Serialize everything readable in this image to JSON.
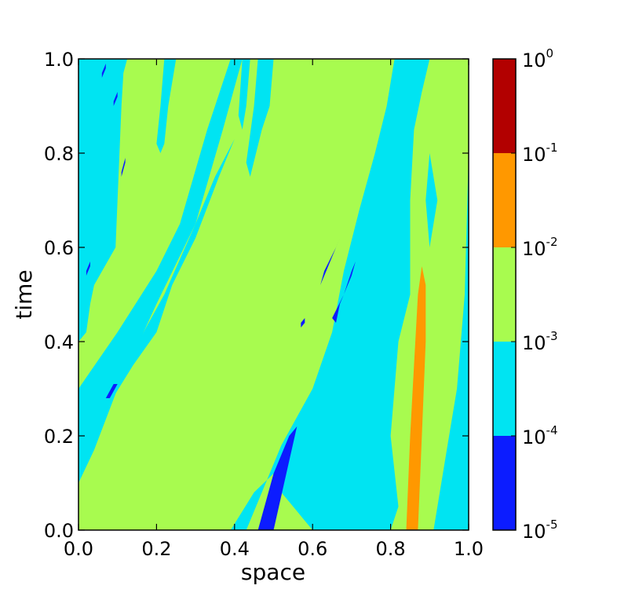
{
  "chart_data": {
    "type": "heatmap",
    "subtype": "filled-contour",
    "title": "",
    "xlabel": "space",
    "ylabel": "time",
    "xlim": [
      0.0,
      1.0
    ],
    "ylim": [
      0.0,
      1.0
    ],
    "x_ticks": [
      "0.0",
      "0.2",
      "0.4",
      "0.6",
      "0.8",
      "1.0"
    ],
    "y_ticks": [
      "0.0",
      "0.2",
      "0.4",
      "0.6",
      "0.8",
      "1.0"
    ],
    "grid": false,
    "colorbar": {
      "scale": "log",
      "levels": [
        {
          "base": "10",
          "exp": "-5",
          "value": 1e-05
        },
        {
          "base": "10",
          "exp": "-4",
          "value": 0.0001
        },
        {
          "base": "10",
          "exp": "-3",
          "value": 0.001
        },
        {
          "base": "10",
          "exp": "-2",
          "value": 0.01
        },
        {
          "base": "10",
          "exp": "-1",
          "value": 0.1
        },
        {
          "base": "10",
          "exp": "0",
          "value": 1
        }
      ],
      "band_colors": [
        "#0c1cff",
        "#00e4f2",
        "#a8fb4f",
        "#ff9800",
        "#b20000"
      ]
    },
    "regions": [
      {
        "level": "1e-3 to 1e-2",
        "color": "#a8fb4f",
        "points": [
          [
            0,
            0
          ],
          [
            1,
            0
          ],
          [
            1,
            1
          ],
          [
            0,
            1
          ]
        ]
      },
      {
        "level": "1e-4 to 1e-3",
        "color": "#00e4f2",
        "points": [
          [
            0,
            1
          ],
          [
            0.125,
            1
          ],
          [
            0.115,
            0.97
          ],
          [
            0.11,
            0.9
          ],
          [
            0.105,
            0.8
          ],
          [
            0.1,
            0.7
          ],
          [
            0.095,
            0.6
          ],
          [
            0.04,
            0.52
          ],
          [
            0.03,
            0.48
          ],
          [
            0.02,
            0.42
          ],
          [
            0,
            0.4
          ]
        ]
      },
      {
        "level": "1e-4 to 1e-3",
        "color": "#00e4f2",
        "points": [
          [
            0,
            0.1
          ],
          [
            0,
            0.3
          ],
          [
            0.1,
            0.42
          ],
          [
            0.2,
            0.55
          ],
          [
            0.26,
            0.65
          ],
          [
            0.33,
            0.85
          ],
          [
            0.39,
            1
          ],
          [
            0.42,
            1
          ],
          [
            0.37,
            0.85
          ],
          [
            0.3,
            0.65
          ],
          [
            0.2,
            0.48
          ],
          [
            0.1,
            0.3
          ],
          [
            0.04,
            0.17
          ]
        ]
      },
      {
        "level": "1e-4 to 1e-3",
        "color": "#00e4f2",
        "points": [
          [
            0,
            0.15
          ],
          [
            0.02,
            0.18
          ],
          [
            0.08,
            0.27
          ],
          [
            0.14,
            0.35
          ],
          [
            0.2,
            0.42
          ],
          [
            0.24,
            0.52
          ],
          [
            0.3,
            0.62
          ],
          [
            0.36,
            0.75
          ],
          [
            0.4,
            0.83
          ],
          [
            0.35,
            0.75
          ],
          [
            0.3,
            0.65
          ],
          [
            0.22,
            0.5
          ],
          [
            0.14,
            0.38
          ],
          [
            0.07,
            0.28
          ],
          [
            0,
            0.2
          ]
        ]
      },
      {
        "level": "1e-4 to 1e-3",
        "color": "#00e4f2",
        "points": [
          [
            0.22,
            1
          ],
          [
            0.25,
            1
          ],
          [
            0.23,
            0.9
          ],
          [
            0.22,
            0.82
          ],
          [
            0.21,
            0.8
          ],
          [
            0.2,
            0.82
          ],
          [
            0.21,
            0.9
          ]
        ]
      },
      {
        "level": "1e-4 to 1e-3",
        "color": "#00e4f2",
        "points": [
          [
            0.39,
            0
          ],
          [
            0.43,
            0
          ],
          [
            0.52,
            0.18
          ],
          [
            0.6,
            0.3
          ],
          [
            0.65,
            0.42
          ],
          [
            0.68,
            0.55
          ],
          [
            0.72,
            0.68
          ],
          [
            0.76,
            0.8
          ],
          [
            0.79,
            0.9
          ],
          [
            0.81,
            1
          ],
          [
            0.9,
            1
          ],
          [
            0.88,
            0.93
          ],
          [
            0.86,
            0.85
          ],
          [
            0.85,
            0.7
          ],
          [
            0.85,
            0.5
          ],
          [
            0.82,
            0.4
          ],
          [
            0.8,
            0.2
          ],
          [
            0.82,
            0.05
          ],
          [
            0.8,
            0
          ],
          [
            0.7,
            0
          ],
          [
            0.6,
            0
          ],
          [
            0.55,
            0.05
          ],
          [
            0.5,
            0.12
          ],
          [
            0.45,
            0.08
          ]
        ]
      },
      {
        "level": "1e-4 to 1e-3",
        "color": "#00e4f2",
        "points": [
          [
            0.42,
            1
          ],
          [
            0.44,
            1
          ],
          [
            0.43,
            0.9
          ],
          [
            0.42,
            0.85
          ],
          [
            0.41,
            0.88
          ]
        ]
      },
      {
        "level": "1e-4 to 1e-3",
        "color": "#00e4f2",
        "points": [
          [
            0.46,
            1
          ],
          [
            0.5,
            1
          ],
          [
            0.49,
            0.9
          ],
          [
            0.47,
            0.85
          ],
          [
            0.44,
            0.75
          ],
          [
            0.43,
            0.78
          ],
          [
            0.45,
            0.9
          ]
        ]
      },
      {
        "level": "1e-4 to 1e-3",
        "color": "#00e4f2",
        "points": [
          [
            0.55,
            0.2
          ],
          [
            0.6,
            0.3
          ],
          [
            0.58,
            0.15
          ],
          [
            0.55,
            0.05
          ],
          [
            0.52,
            0.08
          ]
        ]
      },
      {
        "level": "1e-4 to 1e-3",
        "color": "#00e4f2",
        "points": [
          [
            0.91,
            0
          ],
          [
            1,
            0
          ],
          [
            1,
            0.8
          ],
          [
            0.99,
            0.5
          ],
          [
            0.97,
            0.3
          ],
          [
            0.95,
            0.2
          ],
          [
            0.93,
            0.1
          ]
        ]
      },
      {
        "level": "1e-4 to 1e-3",
        "color": "#00e4f2",
        "points": [
          [
            0.9,
            0.6
          ],
          [
            0.92,
            0.7
          ],
          [
            0.9,
            0.8
          ],
          [
            0.89,
            0.7
          ]
        ]
      },
      {
        "level": "1e-5 to 1e-4",
        "color": "#0c1cff",
        "points": [
          [
            0.46,
            0.0
          ],
          [
            0.5,
            0.0
          ],
          [
            0.56,
            0.22
          ],
          [
            0.54,
            0.2
          ],
          [
            0.5,
            0.12
          ],
          [
            0.48,
            0.06
          ]
        ]
      },
      {
        "level": "1e-5 to 1e-4",
        "color": "#0c1cff",
        "points": [
          [
            0.65,
            0.45
          ],
          [
            0.68,
            0.5
          ],
          [
            0.7,
            0.55
          ],
          [
            0.71,
            0.57
          ],
          [
            0.7,
            0.54
          ],
          [
            0.67,
            0.48
          ],
          [
            0.66,
            0.44
          ]
        ]
      },
      {
        "level": "1e-5 to 1e-4",
        "color": "#0c1cff",
        "points": [
          [
            0.62,
            0.52
          ],
          [
            0.64,
            0.56
          ],
          [
            0.67,
            0.62
          ],
          [
            0.66,
            0.6
          ],
          [
            0.63,
            0.55
          ]
        ]
      },
      {
        "level": "1e-5 to 1e-4",
        "color": "#0c1cff",
        "points": [
          [
            0.57,
            0.43
          ],
          [
            0.58,
            0.44
          ],
          [
            0.58,
            0.45
          ],
          [
            0.57,
            0.44
          ]
        ]
      },
      {
        "level": "1e-5 to 1e-4",
        "color": "#0c1cff",
        "points": [
          [
            0.07,
            0.28
          ],
          [
            0.09,
            0.31
          ],
          [
            0.1,
            0.31
          ],
          [
            0.08,
            0.28
          ]
        ]
      },
      {
        "level": "1e-5 to 1e-4",
        "color": "#0c1cff",
        "points": [
          [
            0.02,
            0.54
          ],
          [
            0.03,
            0.56
          ],
          [
            0.03,
            0.57
          ],
          [
            0.02,
            0.55
          ]
        ]
      },
      {
        "level": "1e-5 to 1e-4",
        "color": "#0c1cff",
        "points": [
          [
            0.11,
            0.75
          ],
          [
            0.12,
            0.78
          ],
          [
            0.12,
            0.79
          ],
          [
            0.11,
            0.76
          ]
        ]
      },
      {
        "level": "1e-5 to 1e-4",
        "color": "#0c1cff",
        "points": [
          [
            0.09,
            0.9
          ],
          [
            0.1,
            0.92
          ],
          [
            0.1,
            0.93
          ],
          [
            0.09,
            0.91
          ]
        ]
      },
      {
        "level": "1e-5 to 1e-4",
        "color": "#0c1cff",
        "points": [
          [
            0.06,
            0.96
          ],
          [
            0.07,
            0.98
          ],
          [
            0.07,
            0.99
          ],
          [
            0.06,
            0.97
          ]
        ]
      },
      {
        "level": "1e-2 to 1e-1",
        "color": "#ff9800",
        "points": [
          [
            0.84,
            0.0
          ],
          [
            0.87,
            0.0
          ],
          [
            0.88,
            0.2
          ],
          [
            0.89,
            0.4
          ],
          [
            0.89,
            0.52
          ],
          [
            0.88,
            0.56
          ],
          [
            0.87,
            0.5
          ],
          [
            0.86,
            0.35
          ],
          [
            0.85,
            0.2
          ]
        ]
      }
    ]
  }
}
